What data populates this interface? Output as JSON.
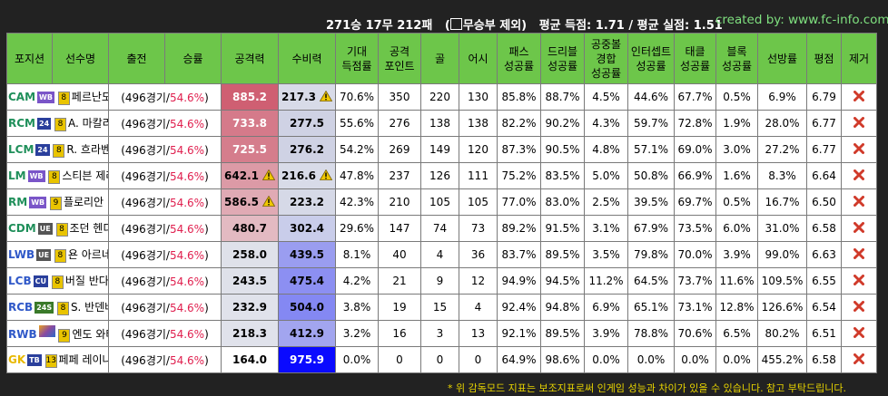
{
  "header": {
    "summary_prefix": "271승 17무 212패",
    "summary_paren_open": "(",
    "summary_checkbox_label": "무승부 제외)",
    "summary_avg": "평균 득점: 1.71 / 평균 실점: 1.51",
    "credit": "created by: www.fc-info.com"
  },
  "table": {
    "columns": [
      "포지션",
      "선수명",
      "출전",
      "승률",
      "공격력",
      "수비력",
      "기대\n득점률",
      "공격\n포인트",
      "골",
      "어시",
      "패스\n성공률",
      "드리블\n성공률",
      "공중볼\n경합\n성공률",
      "인터셉트\n성공률",
      "태클\n성공률",
      "블록\n성공률",
      "선방률",
      "평점",
      "제거"
    ],
    "rows": [
      {
        "pos": "CAM",
        "pos_color": "#1f8f5a",
        "badge": "WB",
        "badge_color": "#7a55c8",
        "level": "8",
        "name": "페르난도 토레스",
        "games": "(496경기/",
        "winrate": "54.6%",
        "paren_close": ")",
        "attack": "885.2",
        "attack_warn": false,
        "defense": "217.3",
        "defense_warn": true,
        "xg": "70.6%",
        "ap": "350",
        "goals": "220",
        "assists": "130",
        "pass": "85.8%",
        "dribble": "88.7%",
        "aerial": "4.5%",
        "intercept": "44.6%",
        "tackle": "67.7%",
        "block": "0.5%",
        "save": "6.9%",
        "rating": "6.79",
        "att_bg": "#cf5f72",
        "att_fg": "#ffffff",
        "def_bg": "#d8dbe8",
        "def_fg": "#000000"
      },
      {
        "pos": "RCM",
        "pos_color": "#1f8f5a",
        "badge": "24",
        "badge_color": "#2a3f9c",
        "level": "8",
        "name": "A. 마칼리스테르",
        "games": "(496경기/",
        "winrate": "54.6%",
        "paren_close": ")",
        "attack": "733.8",
        "attack_warn": false,
        "defense": "277.5",
        "defense_warn": false,
        "xg": "55.6%",
        "ap": "276",
        "goals": "138",
        "assists": "138",
        "pass": "82.2%",
        "dribble": "90.2%",
        "aerial": "4.3%",
        "intercept": "59.7%",
        "tackle": "72.8%",
        "block": "1.9%",
        "save": "28.0%",
        "rating": "6.77",
        "att_bg": "#d57a8a",
        "att_fg": "#ffffff",
        "def_bg": "#cfd2e4",
        "def_fg": "#000000"
      },
      {
        "pos": "LCM",
        "pos_color": "#1f8f5a",
        "badge": "24",
        "badge_color": "#2a3f9c",
        "level": "8",
        "name": "R. 흐라벤베르흐",
        "games": "(496경기/",
        "winrate": "54.6%",
        "paren_close": ")",
        "attack": "725.5",
        "attack_warn": false,
        "defense": "276.2",
        "defense_warn": false,
        "xg": "54.2%",
        "ap": "269",
        "goals": "149",
        "assists": "120",
        "pass": "87.3%",
        "dribble": "90.5%",
        "aerial": "4.8%",
        "intercept": "57.1%",
        "tackle": "69.0%",
        "block": "3.0%",
        "save": "27.2%",
        "rating": "6.77",
        "att_bg": "#d57d8c",
        "att_fg": "#ffffff",
        "def_bg": "#cfd2e4",
        "def_fg": "#000000"
      },
      {
        "pos": "LM",
        "pos_color": "#1f8f5a",
        "badge": "WB",
        "badge_color": "#7a55c8",
        "level": "8",
        "name": "스티븐 제라드",
        "games": "(496경기/",
        "winrate": "54.6%",
        "paren_close": ")",
        "attack": "642.1",
        "attack_warn": true,
        "defense": "216.6",
        "defense_warn": true,
        "xg": "47.8%",
        "ap": "237",
        "goals": "126",
        "assists": "111",
        "pass": "75.2%",
        "dribble": "83.5%",
        "aerial": "5.0%",
        "intercept": "50.8%",
        "tackle": "66.9%",
        "block": "1.6%",
        "save": "8.3%",
        "rating": "6.64",
        "att_bg": "#dc9aa6",
        "att_fg": "#000000",
        "def_bg": "#d8dbe8",
        "def_fg": "#000000"
      },
      {
        "pos": "RM",
        "pos_color": "#1f8f5a",
        "badge": "WB",
        "badge_color": "#7a55c8",
        "level": "9",
        "name": "플로리안 비르츠",
        "games": "(496경기/",
        "winrate": "54.6%",
        "paren_close": ")",
        "attack": "586.5",
        "attack_warn": true,
        "defense": "223.2",
        "defense_warn": false,
        "xg": "42.3%",
        "ap": "210",
        "goals": "105",
        "assists": "105",
        "pass": "77.0%",
        "dribble": "83.0%",
        "aerial": "2.5%",
        "intercept": "39.5%",
        "tackle": "69.7%",
        "block": "0.5%",
        "save": "16.7%",
        "rating": "6.50",
        "att_bg": "#e0aab4",
        "att_fg": "#000000",
        "def_bg": "#d6d9e7",
        "def_fg": "#000000"
      },
      {
        "pos": "CDM",
        "pos_color": "#1f8f5a",
        "badge": "UE",
        "badge_color": "#555555",
        "level": "8",
        "name": "조던 헨더슨",
        "games": "(496경기/",
        "winrate": "54.6%",
        "paren_close": ")",
        "attack": "480.7",
        "attack_warn": false,
        "defense": "302.4",
        "defense_warn": false,
        "xg": "29.6%",
        "ap": "147",
        "goals": "74",
        "assists": "73",
        "pass": "89.2%",
        "dribble": "91.5%",
        "aerial": "3.1%",
        "intercept": "67.9%",
        "tackle": "73.5%",
        "block": "6.0%",
        "save": "31.0%",
        "rating": "6.58",
        "att_bg": "#e3bac2",
        "att_fg": "#000000",
        "def_bg": "#c9cdea",
        "def_fg": "#000000"
      },
      {
        "pos": "LWB",
        "pos_color": "#2f58c8",
        "badge": "UE",
        "badge_color": "#555555",
        "level": "8",
        "name": "욘 아르네 리세",
        "games": "(496경기/",
        "winrate": "54.6%",
        "paren_close": ")",
        "attack": "258.0",
        "attack_warn": false,
        "defense": "439.5",
        "defense_warn": false,
        "xg": "8.1%",
        "ap": "40",
        "goals": "4",
        "assists": "36",
        "pass": "83.7%",
        "dribble": "89.5%",
        "aerial": "3.5%",
        "intercept": "79.8%",
        "tackle": "70.0%",
        "block": "3.9%",
        "save": "99.0%",
        "rating": "6.63",
        "att_bg": "#dfe1ea",
        "att_fg": "#000000",
        "def_bg": "#9a9df0",
        "def_fg": "#000000"
      },
      {
        "pos": "LCB",
        "pos_color": "#2f58c8",
        "badge": "CU",
        "badge_color": "#2a3f9c",
        "level": "8",
        "name": "버질 반다이크",
        "games": "(496경기/",
        "winrate": "54.6%",
        "paren_close": ")",
        "attack": "243.5",
        "attack_warn": false,
        "defense": "475.4",
        "defense_warn": false,
        "xg": "4.2%",
        "ap": "21",
        "goals": "9",
        "assists": "12",
        "pass": "94.9%",
        "dribble": "94.5%",
        "aerial": "11.2%",
        "intercept": "64.5%",
        "tackle": "73.7%",
        "block": "11.6%",
        "save": "109.5%",
        "rating": "6.55",
        "att_bg": "#dfe1ea",
        "att_fg": "#000000",
        "def_bg": "#8c8ff2",
        "def_fg": "#000000"
      },
      {
        "pos": "RCB",
        "pos_color": "#2f58c8",
        "badge": "24S",
        "badge_color": "#3a7a2a",
        "level": "8",
        "name": "S. 반덴베르흐",
        "games": "(496경기/",
        "winrate": "54.6%",
        "paren_close": ")",
        "attack": "232.9",
        "attack_warn": false,
        "defense": "504.0",
        "defense_warn": false,
        "xg": "3.8%",
        "ap": "19",
        "goals": "15",
        "assists": "4",
        "pass": "92.4%",
        "dribble": "94.8%",
        "aerial": "6.9%",
        "intercept": "65.1%",
        "tackle": "73.1%",
        "block": "12.8%",
        "save": "126.6%",
        "rating": "6.54",
        "att_bg": "#e0e2eb",
        "att_fg": "#000000",
        "def_bg": "#8488f3",
        "def_fg": "#000000"
      },
      {
        "pos": "RWB",
        "pos_color": "#2f58c8",
        "badge": "",
        "badge_color": "#c09030",
        "level": "9",
        "name": "엔도 와타루",
        "games": "(496경기/",
        "winrate": "54.6%",
        "paren_close": ")",
        "attack": "218.3",
        "attack_warn": false,
        "defense": "412.9",
        "defense_warn": false,
        "xg": "3.2%",
        "ap": "16",
        "goals": "3",
        "assists": "13",
        "pass": "92.1%",
        "dribble": "89.5%",
        "aerial": "3.9%",
        "intercept": "78.8%",
        "tackle": "70.6%",
        "block": "6.5%",
        "save": "80.2%",
        "rating": "6.51",
        "att_bg": "#e0e2eb",
        "att_fg": "#000000",
        "def_bg": "#a2a5ef",
        "def_fg": "#000000"
      },
      {
        "pos": "GK",
        "pos_color": "#e8b800",
        "badge": "TB",
        "badge_color": "#2a3f9c",
        "level": "13",
        "name": "페페 레이나",
        "games": "(496경기/",
        "winrate": "54.6%",
        "paren_close": ")",
        "attack": "164.0",
        "attack_warn": false,
        "defense": "975.9",
        "defense_warn": false,
        "xg": "0.0%",
        "ap": "0",
        "goals": "0",
        "assists": "0",
        "pass": "64.9%",
        "dribble": "98.6%",
        "aerial": "0.0%",
        "intercept": "0.0%",
        "tackle": "0.0%",
        "block": "0.0%",
        "save": "455.2%",
        "rating": "6.58",
        "att_bg": "#ffffff",
        "att_fg": "#000000",
        "def_bg": "#0a0aff",
        "def_fg": "#ffffff"
      }
    ]
  },
  "footer": "* 위 감독모드 지표는 보조지표로써 인게임 성능과 차이가 있을 수 있습니다. 참고 부탁드립니다.",
  "icons": {
    "warning": "warning-icon",
    "delete": "delete-x-icon"
  },
  "colors": {
    "header_green": "#6dc64a",
    "credit_green": "#7fe07f",
    "footer_yellow": "#e8d400",
    "winrate_red": "#e0204f",
    "delete_red": "#d03a2a"
  }
}
